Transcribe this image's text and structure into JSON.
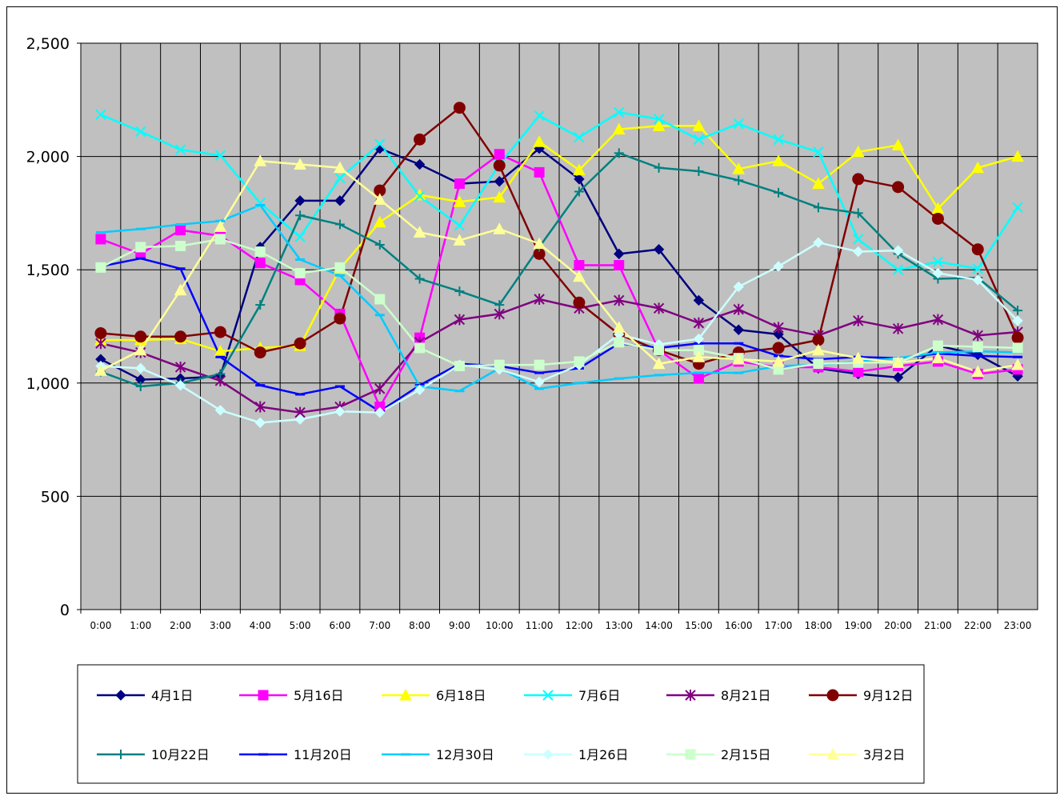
{
  "chart_data": {
    "type": "line",
    "title": "",
    "xlabel": "",
    "ylabel": "",
    "ylim": [
      0,
      2500
    ],
    "yticks": [
      0,
      500,
      1000,
      1500,
      2000,
      2500
    ],
    "ytick_labels": [
      "0",
      "500",
      "1,000",
      "1,500",
      "2,000",
      "2,500"
    ],
    "grid": true,
    "legend_position": "bottom",
    "plot_background": "#c0c0c0",
    "categories": [
      "0:00",
      "1:00",
      "2:00",
      "3:00",
      "4:00",
      "5:00",
      "6:00",
      "7:00",
      "8:00",
      "9:00",
      "10:00",
      "11:00",
      "12:00",
      "13:00",
      "14:00",
      "15:00",
      "16:00",
      "17:00",
      "18:00",
      "19:00",
      "20:00",
      "21:00",
      "22:00",
      "23:00"
    ],
    "series": [
      {
        "name": "4月1日",
        "color": "#000080",
        "marker": "diamond",
        "values": [
          1105,
          1015,
          1020,
          1030,
          1600,
          1805,
          1805,
          2035,
          1965,
          1880,
          1890,
          2035,
          1900,
          1570,
          1590,
          1365,
          1235,
          1215,
          1065,
          1040,
          1025,
          1165,
          1125,
          1030
        ]
      },
      {
        "name": "5月16日",
        "color": "#ff00ff",
        "marker": "square",
        "values": [
          1635,
          1570,
          1675,
          1650,
          1530,
          1455,
          1305,
          895,
          1200,
          1880,
          2010,
          1930,
          1520,
          1520,
          1145,
          1020,
          1095,
          1070,
          1070,
          1050,
          1075,
          1095,
          1040,
          1060
        ]
      },
      {
        "name": "6月18日",
        "color": "#ffff00",
        "marker": "triangle",
        "values": [
          1190,
          1190,
          1195,
          1140,
          1155,
          1165,
          1505,
          1710,
          1830,
          1800,
          1820,
          2065,
          1940,
          2120,
          2135,
          2135,
          1945,
          1980,
          1880,
          2020,
          2050,
          1770,
          1950,
          2000
        ]
      },
      {
        "name": "7月6日",
        "color": "#00ffff",
        "marker": "x",
        "values": [
          2185,
          2110,
          2030,
          2005,
          1795,
          1645,
          1905,
          2055,
          1825,
          1695,
          1965,
          2180,
          2085,
          2195,
          2165,
          2075,
          2145,
          2075,
          2020,
          1635,
          1500,
          1535,
          1505,
          1775
        ]
      },
      {
        "name": "8月21日",
        "color": "#800080",
        "marker": "star",
        "values": [
          1175,
          1135,
          1070,
          1010,
          895,
          870,
          895,
          975,
          1180,
          1280,
          1305,
          1370,
          1330,
          1365,
          1330,
          1265,
          1325,
          1245,
          1210,
          1275,
          1240,
          1280,
          1210,
          1225
        ]
      },
      {
        "name": "9月12日",
        "color": "#800000",
        "marker": "circle",
        "values": [
          1220,
          1205,
          1205,
          1225,
          1135,
          1175,
          1285,
          1850,
          2075,
          2215,
          1960,
          1570,
          1355,
          1215,
          1145,
          1085,
          1135,
          1155,
          1190,
          1900,
          1865,
          1725,
          1590,
          1200
        ]
      },
      {
        "name": "10月22日",
        "color": "#008080",
        "marker": "plus",
        "values": [
          1050,
          985,
          1000,
          1040,
          1345,
          1740,
          1700,
          1610,
          1460,
          1405,
          1345,
          1600,
          1845,
          2015,
          1950,
          1935,
          1895,
          1840,
          1775,
          1750,
          1570,
          1460,
          1465,
          1320
        ]
      },
      {
        "name": "11月20日",
        "color": "#0000ff",
        "marker": "dash",
        "values": [
          1515,
          1550,
          1505,
          1115,
          990,
          950,
          985,
          875,
          990,
          1085,
          1075,
          1045,
          1065,
          1175,
          1155,
          1175,
          1175,
          1120,
          1105,
          1115,
          1110,
          1130,
          1120,
          1115
        ]
      },
      {
        "name": "12月30日",
        "color": "#00ccff",
        "marker": "dash",
        "values": [
          1665,
          1680,
          1700,
          1715,
          1785,
          1545,
          1475,
          1300,
          985,
          965,
          1065,
          975,
          1000,
          1020,
          1035,
          1045,
          1045,
          1075,
          1080,
          1095,
          1110,
          1135,
          1140,
          1135
        ]
      },
      {
        "name": "1月26日",
        "color": "#ccffff",
        "marker": "diamond",
        "values": [
          1075,
          1065,
          990,
          880,
          825,
          840,
          875,
          870,
          970,
          1080,
          1060,
          1005,
          1080,
          1215,
          1170,
          1195,
          1425,
          1515,
          1620,
          1580,
          1585,
          1485,
          1455,
          1275
        ]
      },
      {
        "name": "2月15日",
        "color": "#ccffcc",
        "marker": "square",
        "values": [
          1510,
          1600,
          1605,
          1635,
          1580,
          1485,
          1510,
          1370,
          1155,
          1075,
          1080,
          1080,
          1095,
          1180,
          1145,
          1145,
          1110,
          1060,
          1085,
          1090,
          1090,
          1165,
          1160,
          1155
        ]
      },
      {
        "name": "3月2日",
        "color": "#ffff99",
        "marker": "triangle",
        "values": [
          1055,
          1145,
          1410,
          1690,
          1980,
          1965,
          1950,
          1810,
          1665,
          1630,
          1680,
          1615,
          1470,
          1245,
          1085,
          1115,
          1105,
          1095,
          1145,
          1110,
          1090,
          1110,
          1050,
          1080
        ]
      }
    ]
  }
}
